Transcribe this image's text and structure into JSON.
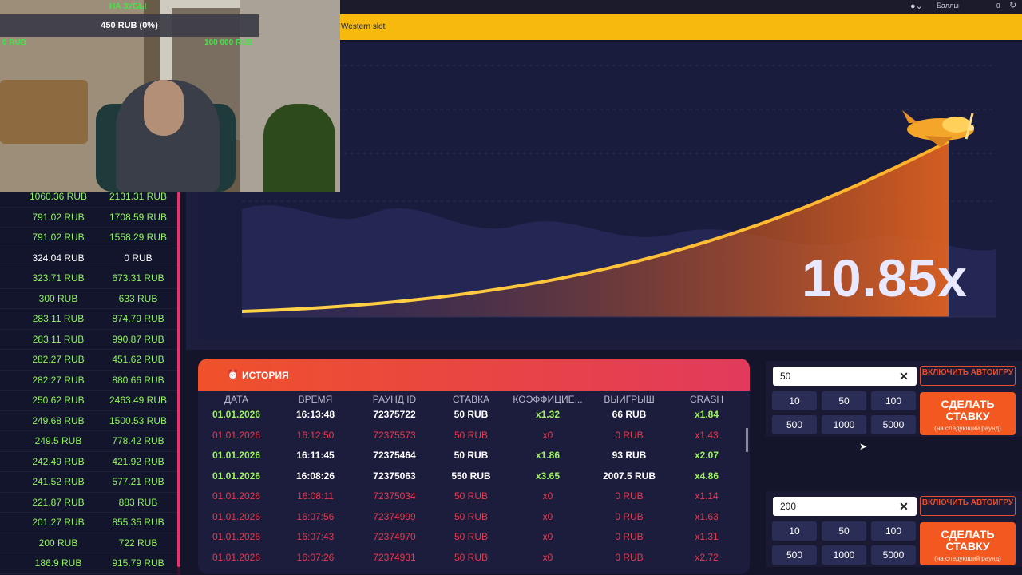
{
  "header": {
    "user_label": "Баллы",
    "points": "0"
  },
  "banner": {
    "text": "Western slot"
  },
  "game": {
    "multiplier": "10.85x"
  },
  "stream": {
    "tag": "НА ЗУБЫ",
    "progress_text": "450 RUB (0%)",
    "progress_fraction": 0,
    "min_label": "0 RUB",
    "max_label": "100 000 RUB"
  },
  "leaderboard": [
    {
      "a": "1060.36 RUB",
      "b": "2131.31 RUB",
      "win": true
    },
    {
      "a": "791.02 RUB",
      "b": "1708.59 RUB",
      "win": true
    },
    {
      "a": "791.02 RUB",
      "b": "1558.29 RUB",
      "win": true
    },
    {
      "a": "324.04 RUB",
      "b": "0 RUB",
      "win": false
    },
    {
      "a": "323.71 RUB",
      "b": "673.31 RUB",
      "win": true
    },
    {
      "a": "300 RUB",
      "b": "633 RUB",
      "win": true
    },
    {
      "a": "283.11 RUB",
      "b": "874.79 RUB",
      "win": true
    },
    {
      "a": "283.11 RUB",
      "b": "990.87 RUB",
      "win": true
    },
    {
      "a": "282.27 RUB",
      "b": "451.62 RUB",
      "win": true
    },
    {
      "a": "282.27 RUB",
      "b": "880.66 RUB",
      "win": true
    },
    {
      "a": "250.62 RUB",
      "b": "2463.49 RUB",
      "win": true
    },
    {
      "a": "249.68 RUB",
      "b": "1500.53 RUB",
      "win": true
    },
    {
      "a": "249.5 RUB",
      "b": "778.42 RUB",
      "win": true
    },
    {
      "a": "242.49 RUB",
      "b": "421.92 RUB",
      "win": true
    },
    {
      "a": "241.52 RUB",
      "b": "577.21 RUB",
      "win": true
    },
    {
      "a": "221.87 RUB",
      "b": "883 RUB",
      "win": true
    },
    {
      "a": "201.27 RUB",
      "b": "855.35 RUB",
      "win": true
    },
    {
      "a": "200 RUB",
      "b": "722 RUB",
      "win": true
    },
    {
      "a": "186.9 RUB",
      "b": "915.79 RUB",
      "win": true
    }
  ],
  "history": {
    "title": "ИСТОРИЯ",
    "columns": [
      "ДАТА",
      "ВРЕМЯ",
      "РАУНД ID",
      "СТАВКА",
      "КОЭФФИЦИЕ...",
      "ВЫИГРЫШ",
      "CRASH"
    ],
    "rows": [
      {
        "date": "01.01.2026",
        "time": "16:13:48",
        "round": "72375722",
        "bet": "50 RUB",
        "coef": "x1.32",
        "win": "66 RUB",
        "crash": "x1.84",
        "won": true
      },
      {
        "date": "01.01.2026",
        "time": "16:12:50",
        "round": "72375573",
        "bet": "50 RUB",
        "coef": "x0",
        "win": "0 RUB",
        "crash": "x1.43",
        "won": false
      },
      {
        "date": "01.01.2026",
        "time": "16:11:45",
        "round": "72375464",
        "bet": "50 RUB",
        "coef": "x1.86",
        "win": "93 RUB",
        "crash": "x2.07",
        "won": true
      },
      {
        "date": "01.01.2026",
        "time": "16:08:26",
        "round": "72375063",
        "bet": "550 RUB",
        "coef": "x3.65",
        "win": "2007.5 RUB",
        "crash": "x4.86",
        "won": true
      },
      {
        "date": "01.01.2026",
        "time": "16:08:11",
        "round": "72375034",
        "bet": "50 RUB",
        "coef": "x0",
        "win": "0 RUB",
        "crash": "x1.14",
        "won": false
      },
      {
        "date": "01.01.2026",
        "time": "16:07:56",
        "round": "72374999",
        "bet": "50 RUB",
        "coef": "x0",
        "win": "0 RUB",
        "crash": "x1.63",
        "won": false
      },
      {
        "date": "01.01.2026",
        "time": "16:07:43",
        "round": "72374970",
        "bet": "50 RUB",
        "coef": "x0",
        "win": "0 RUB",
        "crash": "x1.31",
        "won": false
      },
      {
        "date": "01.01.2026",
        "time": "16:07:26",
        "round": "72374931",
        "bet": "50 RUB",
        "coef": "x0",
        "win": "0 RUB",
        "crash": "x2.72",
        "won": false
      }
    ]
  },
  "bets": [
    {
      "amount": "50",
      "auto_label": "ВКЛЮЧИТЬ АВТОИГРУ",
      "quick": [
        "10",
        "50",
        "100",
        "500",
        "1000",
        "5000"
      ],
      "bet_label": "СДЕЛАТЬ СТАВКУ",
      "bet_note": "(на следующий раунд)"
    },
    {
      "amount": "200",
      "auto_label": "ВКЛЮЧИТЬ АВТОИГРУ",
      "quick": [
        "10",
        "50",
        "100",
        "500",
        "1000",
        "5000"
      ],
      "bet_label": "СДЕЛАТЬ СТАВКУ",
      "bet_note": "(на следующий раунд)"
    }
  ],
  "colors": {
    "accent": "#f2581f",
    "win": "#9cf25a",
    "lose": "#e63a4e",
    "banner": "#f7b90d"
  }
}
